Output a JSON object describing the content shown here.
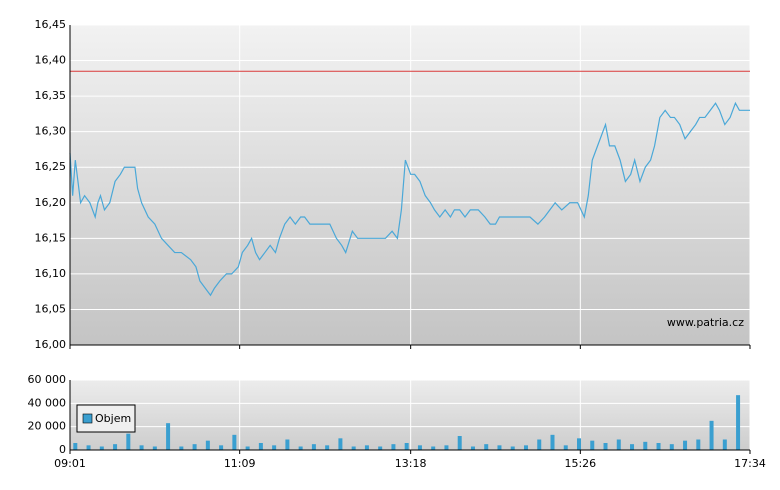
{
  "chart_data": [
    {
      "type": "line",
      "x": [
        541,
        543,
        545,
        549,
        552,
        556,
        560,
        562,
        564,
        567,
        571,
        575,
        579,
        582,
        586,
        590,
        592,
        595,
        600,
        605,
        610,
        615,
        620,
        625,
        632,
        636,
        639,
        643,
        647,
        650,
        654,
        659,
        663,
        668,
        671,
        675,
        678,
        681,
        684,
        688,
        692,
        696,
        699,
        703,
        707,
        711,
        715,
        718,
        722,
        730,
        737,
        742,
        746,
        749,
        754,
        758,
        764,
        771,
        779,
        784,
        788,
        791,
        794,
        798,
        801,
        805,
        809,
        813,
        816,
        820,
        824,
        828,
        831,
        835,
        839,
        843,
        849,
        854,
        858,
        862,
        865,
        869,
        873,
        880,
        888,
        894,
        899,
        903,
        907,
        912,
        918,
        924,
        929,
        932,
        935,
        939,
        945,
        948,
        952,
        956,
        960,
        964,
        967,
        971,
        975,
        979,
        982,
        986,
        990,
        994,
        997,
        1001,
        1005,
        1009,
        1013,
        1016,
        1020,
        1024,
        1028,
        1031,
        1035,
        1039,
        1043,
        1046,
        1050,
        1054
      ],
      "series": [
        {
          "color": "#4aa8d8",
          "values": [
            16.27,
            16.21,
            16.26,
            16.2,
            16.21,
            16.2,
            16.18,
            16.2,
            16.21,
            16.19,
            16.2,
            16.23,
            16.24,
            16.25,
            16.25,
            16.25,
            16.22,
            16.2,
            16.18,
            16.17,
            16.15,
            16.14,
            16.13,
            16.13,
            16.12,
            16.11,
            16.09,
            16.08,
            16.07,
            16.08,
            16.09,
            16.1,
            16.1,
            16.11,
            16.13,
            16.14,
            16.15,
            16.13,
            16.12,
            16.13,
            16.14,
            16.13,
            16.15,
            16.17,
            16.18,
            16.17,
            16.18,
            16.18,
            16.17,
            16.17,
            16.17,
            16.15,
            16.14,
            16.13,
            16.16,
            16.15,
            16.15,
            16.15,
            16.15,
            16.16,
            16.15,
            16.19,
            16.26,
            16.24,
            16.24,
            16.23,
            16.21,
            16.2,
            16.19,
            16.18,
            16.19,
            16.18,
            16.19,
            16.19,
            16.18,
            16.19,
            16.19,
            16.18,
            16.17,
            16.17,
            16.18,
            16.18,
            16.18,
            16.18,
            16.18,
            16.17,
            16.18,
            16.19,
            16.2,
            16.19,
            16.2,
            16.2,
            16.18,
            16.21,
            16.26,
            16.28,
            16.31,
            16.28,
            16.28,
            16.26,
            16.23,
            16.24,
            16.26,
            16.23,
            16.25,
            16.26,
            16.28,
            16.32,
            16.33,
            16.32,
            16.32,
            16.31,
            16.29,
            16.3,
            16.31,
            16.32,
            16.32,
            16.33,
            16.34,
            16.33,
            16.31,
            16.32,
            16.34,
            16.33,
            16.33,
            16.33
          ]
        }
      ],
      "reference_line": {
        "value": 16.385,
        "color": "#d93a3a"
      },
      "ylim": [
        16.0,
        16.45
      ],
      "yticks": [
        {
          "value": 16.0,
          "label": "16,00"
        },
        {
          "value": 16.05,
          "label": "16,05"
        },
        {
          "value": 16.1,
          "label": "16,10"
        },
        {
          "value": 16.15,
          "label": "16,15"
        },
        {
          "value": 16.2,
          "label": "16,20"
        },
        {
          "value": 16.25,
          "label": "16,25"
        },
        {
          "value": 16.3,
          "label": "16,30"
        },
        {
          "value": 16.35,
          "label": "16,35"
        },
        {
          "value": 16.4,
          "label": "16,40"
        },
        {
          "value": 16.45,
          "label": "16,45"
        }
      ],
      "grid": true,
      "annotation": "www.patria.cz"
    },
    {
      "type": "bar",
      "x": [
        545,
        555,
        565,
        575,
        585,
        595,
        605,
        615,
        625,
        635,
        645,
        655,
        665,
        675,
        685,
        695,
        705,
        715,
        725,
        735,
        745,
        755,
        765,
        775,
        785,
        795,
        805,
        815,
        825,
        835,
        845,
        855,
        865,
        875,
        885,
        895,
        905,
        915,
        925,
        935,
        945,
        955,
        965,
        975,
        985,
        995,
        1005,
        1015,
        1025,
        1035,
        1045
      ],
      "series": [
        {
          "name": "Objem",
          "color": "#3a9fd0",
          "values": [
            6000,
            4000,
            3000,
            5000,
            14000,
            4000,
            3000,
            23000,
            3000,
            5000,
            8000,
            4000,
            13000,
            3000,
            6000,
            4000,
            9000,
            3000,
            5000,
            4000,
            10000,
            3000,
            4000,
            3000,
            5000,
            6000,
            4000,
            3000,
            4000,
            12000,
            3000,
            5000,
            4000,
            3000,
            4000,
            9000,
            13000,
            4000,
            10000,
            8000,
            6000,
            9000,
            5000,
            7000,
            6000,
            5000,
            8000,
            9000,
            25000,
            9000,
            47000
          ]
        }
      ],
      "xlim": [
        541,
        1054
      ],
      "xticks": [
        {
          "value": 541,
          "label": "09:01"
        },
        {
          "value": 669,
          "label": "11:09"
        },
        {
          "value": 798,
          "label": "13:18"
        },
        {
          "value": 926,
          "label": "15:26"
        },
        {
          "value": 1054,
          "label": "17:34"
        }
      ],
      "ylim": [
        0,
        60000
      ],
      "yticks": [
        0,
        {
          "value": 20000,
          "label": "20 000"
        },
        {
          "value": 40000,
          "label": "40 000"
        },
        {
          "value": 60000,
          "label": "60 000"
        }
      ],
      "grid": true,
      "legend": "upper-left"
    }
  ]
}
